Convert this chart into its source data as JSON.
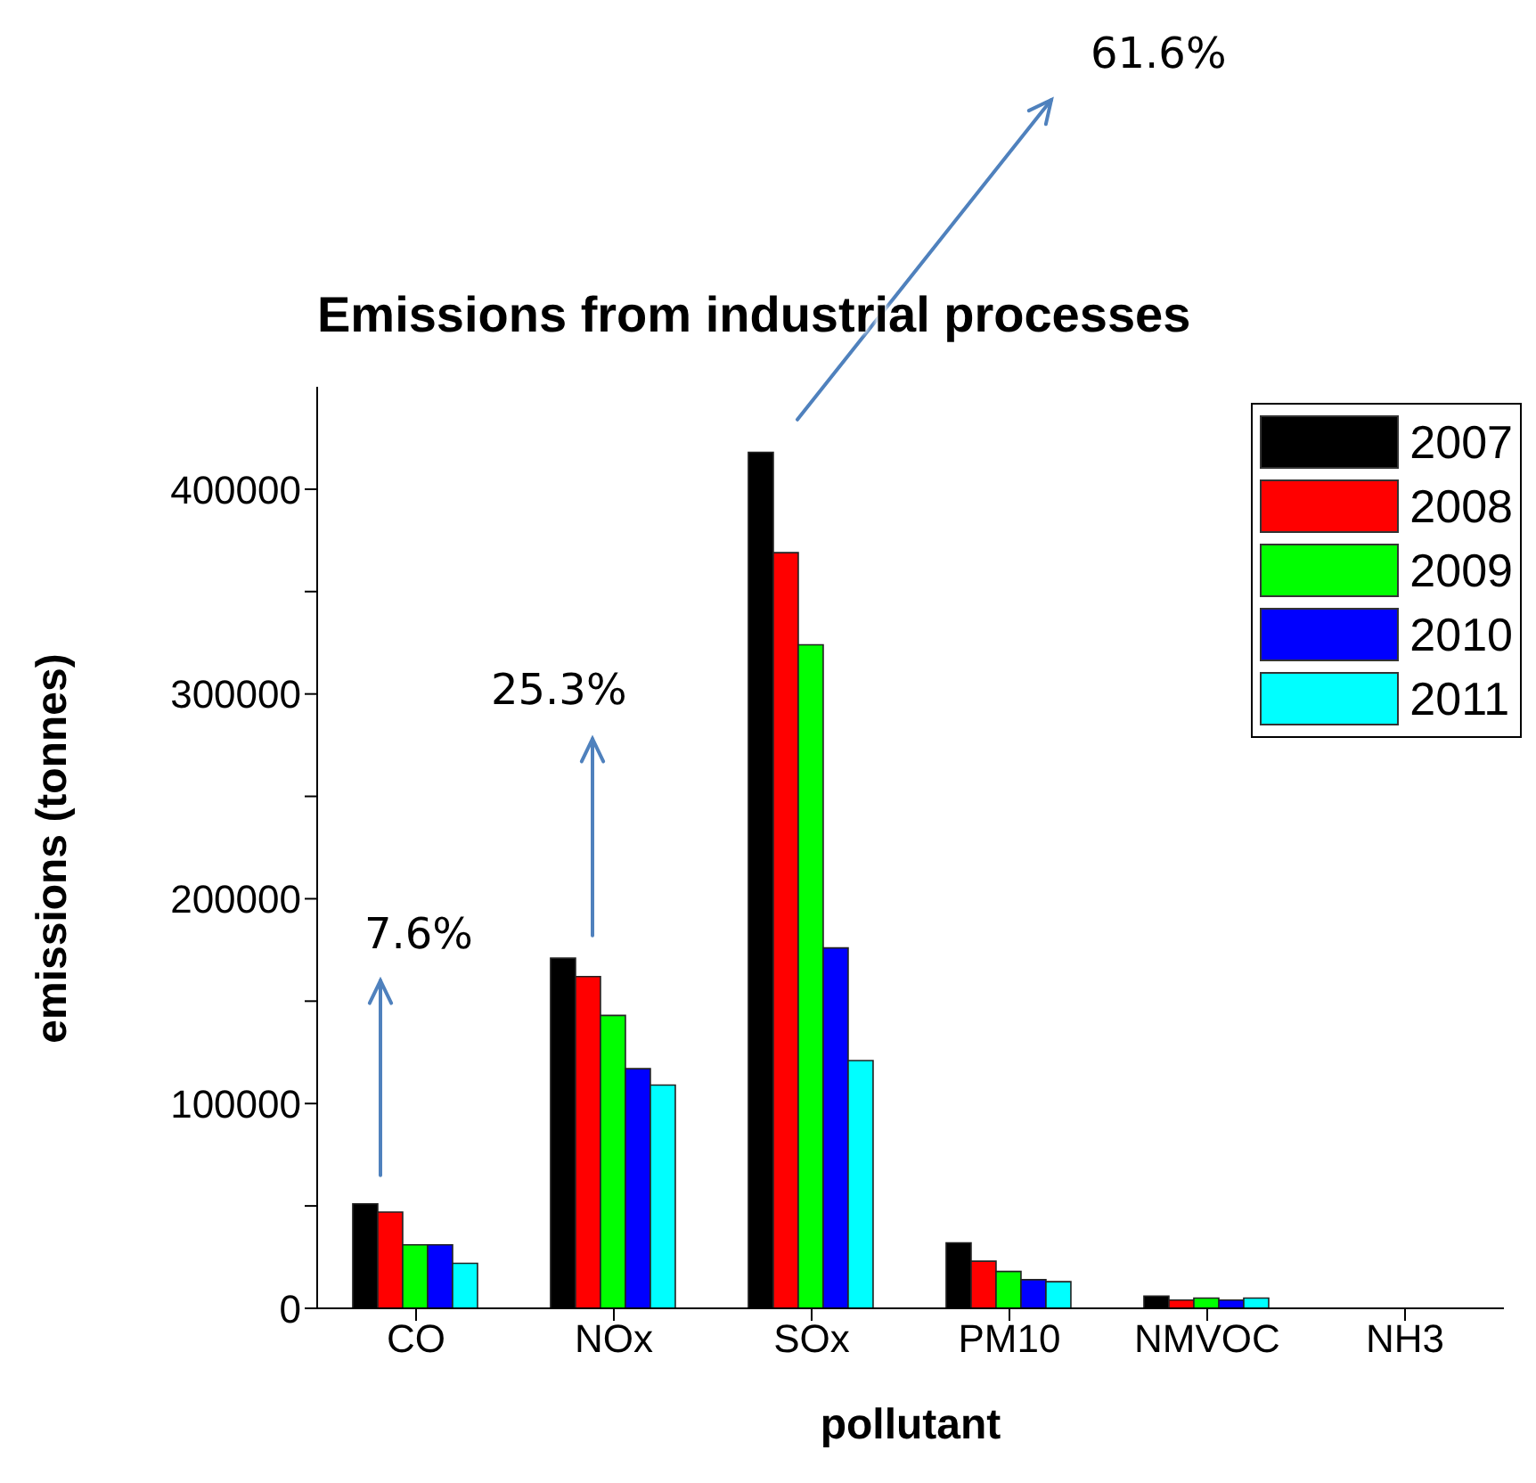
{
  "chart_data": {
    "type": "bar",
    "title": "Emissions from industrial processes",
    "xlabel": "pollutant",
    "ylabel": "emissions (tonnes)",
    "categories": [
      "CO",
      "NOx",
      "SOx",
      "PM10",
      "NMVOC",
      "NH3"
    ],
    "series": [
      {
        "name": "2007",
        "color": "#000000",
        "values": [
          51000,
          171000,
          418000,
          32000,
          6000,
          0
        ]
      },
      {
        "name": "2008",
        "color": "#ff0000",
        "values": [
          47000,
          162000,
          369000,
          23000,
          4000,
          0
        ]
      },
      {
        "name": "2009",
        "color": "#00ff00",
        "values": [
          31000,
          143000,
          324000,
          18000,
          5000,
          0
        ]
      },
      {
        "name": "2010",
        "color": "#0000ff",
        "values": [
          31000,
          117000,
          176000,
          14000,
          4000,
          0
        ]
      },
      {
        "name": "2011",
        "color": "#00ffff",
        "values": [
          22000,
          109000,
          121000,
          13000,
          5000,
          0
        ]
      }
    ],
    "ylim": [
      0,
      450000
    ],
    "yticks": [
      0,
      {
        "value": 50000,
        "label": null
      },
      100000,
      {
        "value": 150000,
        "label": null
      },
      200000,
      {
        "value": 250000,
        "label": null
      },
      300000,
      {
        "value": 350000,
        "label": null
      },
      400000
    ],
    "legend": "top right",
    "annotations": [
      "7.6%",
      "25.3%",
      "61.6%"
    ]
  }
}
